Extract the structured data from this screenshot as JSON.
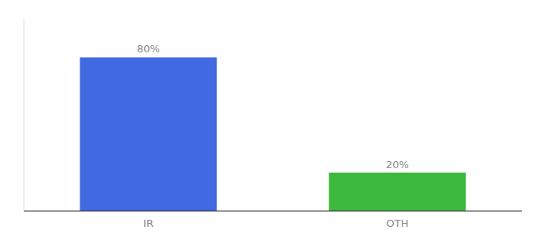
{
  "chart_data": {
    "type": "bar",
    "categories": [
      "IR",
      "OTH"
    ],
    "values": [
      80,
      20
    ],
    "value_labels": [
      "80%",
      "20%"
    ],
    "data_labels": true,
    "colors": [
      "#4169e1",
      "#3cb83c"
    ],
    "ylim": [
      0,
      100
    ],
    "tick_labels": "x",
    "grid": false
  }
}
